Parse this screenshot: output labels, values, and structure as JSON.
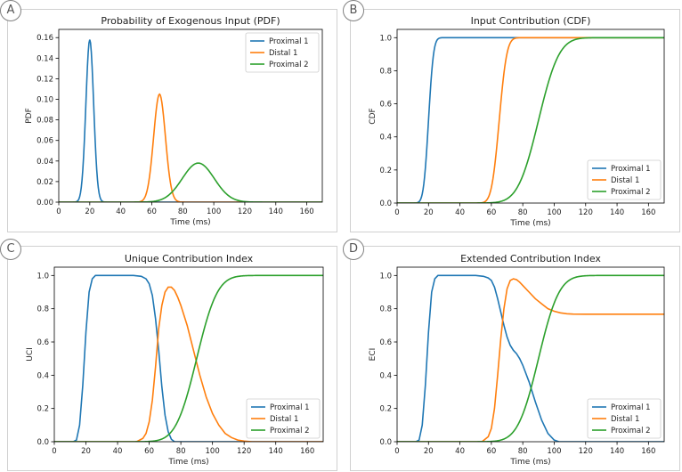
{
  "colors": {
    "blue": "#1f77b4",
    "orange": "#ff7f0e",
    "green": "#2ca02c"
  },
  "chart_data": [
    {
      "id": "pdf",
      "badge": "A",
      "type": "line",
      "title": "Probability of Exogenous Input (PDF)",
      "xlabel": "Time (ms)",
      "ylabel": "PDF",
      "xlim": [
        0,
        170
      ],
      "ylim": [
        0,
        0.168
      ],
      "xticks": [
        0,
        20,
        40,
        60,
        80,
        100,
        120,
        140,
        160
      ],
      "xtick_labels": [
        "0",
        "20",
        "40",
        "60",
        "80",
        "100",
        "120",
        "140",
        "160"
      ],
      "yticks": [
        0,
        0.02,
        0.04,
        0.06,
        0.08,
        0.1,
        0.12,
        0.14,
        0.16
      ],
      "ytick_labels": [
        "0.00",
        "0.02",
        "0.04",
        "0.06",
        "0.08",
        "0.10",
        "0.12",
        "0.14",
        "0.16"
      ],
      "legend_position": "top-right",
      "series": [
        {
          "name": "Proximal 1",
          "color": "#1f77b4",
          "kind": "gauss",
          "mu": 20,
          "sigma": 2.5,
          "peak": 0.158
        },
        {
          "name": "Distal 1",
          "color": "#ff7f0e",
          "kind": "gauss",
          "mu": 65,
          "sigma": 3.8,
          "peak": 0.105
        },
        {
          "name": "Proximal 2",
          "color": "#2ca02c",
          "kind": "gauss",
          "mu": 90,
          "sigma": 10.3,
          "peak": 0.038
        }
      ]
    },
    {
      "id": "cdf",
      "badge": "B",
      "type": "line",
      "title": "Input Contribution (CDF)",
      "xlabel": "Time (ms)",
      "ylabel": "CDF",
      "xlim": [
        0,
        170
      ],
      "ylim": [
        0,
        1.05
      ],
      "xticks": [
        0,
        20,
        40,
        60,
        80,
        100,
        120,
        140,
        160
      ],
      "xtick_labels": [
        "0",
        "20",
        "40",
        "60",
        "80",
        "100",
        "120",
        "140",
        "160"
      ],
      "yticks": [
        0,
        0.2,
        0.4,
        0.6,
        0.8,
        1.0
      ],
      "ytick_labels": [
        "0.0",
        "0.2",
        "0.4",
        "0.6",
        "0.8",
        "1.0"
      ],
      "legend_position": "bottom-right",
      "series": [
        {
          "name": "Proximal 1",
          "color": "#1f77b4",
          "kind": "cdf",
          "mu": 20,
          "sigma": 2.5
        },
        {
          "name": "Distal 1",
          "color": "#ff7f0e",
          "kind": "cdf",
          "mu": 65,
          "sigma": 3.8
        },
        {
          "name": "Proximal 2",
          "color": "#2ca02c",
          "kind": "cdf",
          "mu": 90,
          "sigma": 10.3
        }
      ]
    },
    {
      "id": "uci",
      "badge": "C",
      "type": "line",
      "title": "Unique Contribution Index",
      "xlabel": "Time (ms)",
      "ylabel": "UCI",
      "xlim": [
        0,
        170
      ],
      "ylim": [
        0,
        1.05
      ],
      "xticks": [
        0,
        20,
        40,
        60,
        80,
        100,
        120,
        140,
        160
      ],
      "xtick_labels": [
        "0",
        "20",
        "40",
        "60",
        "80",
        "100",
        "120",
        "140",
        "160"
      ],
      "yticks": [
        0,
        0.2,
        0.4,
        0.6,
        0.8,
        1.0
      ],
      "ytick_labels": [
        "0.0",
        "0.2",
        "0.4",
        "0.6",
        "0.8",
        "1.0"
      ],
      "legend_position": "bottom-right",
      "series": [
        {
          "name": "Proximal 1",
          "color": "#1f77b4",
          "kind": "points",
          "x": [
            0,
            12,
            14,
            16,
            18,
            20,
            22,
            24,
            26,
            30,
            40,
            50,
            55,
            58,
            60,
            62,
            64,
            66,
            68,
            70,
            72,
            74,
            76,
            80,
            170
          ],
          "y": [
            0,
            0,
            0.01,
            0.1,
            0.34,
            0.66,
            0.9,
            0.98,
            1.0,
            1.0,
            1.0,
            1.0,
            0.995,
            0.98,
            0.95,
            0.88,
            0.74,
            0.55,
            0.33,
            0.16,
            0.06,
            0.015,
            0,
            0,
            0
          ]
        },
        {
          "name": "Distal 1",
          "color": "#ff7f0e",
          "kind": "points",
          "x": [
            0,
            52,
            56,
            58,
            60,
            62,
            64,
            66,
            68,
            70,
            72,
            74,
            76,
            78,
            80,
            84,
            88,
            92,
            96,
            100,
            104,
            108,
            112,
            116,
            120,
            125,
            170
          ],
          "y": [
            0,
            0,
            0.02,
            0.05,
            0.12,
            0.25,
            0.45,
            0.68,
            0.82,
            0.9,
            0.93,
            0.93,
            0.91,
            0.87,
            0.82,
            0.7,
            0.55,
            0.4,
            0.27,
            0.17,
            0.1,
            0.05,
            0.025,
            0.01,
            0.004,
            0,
            0
          ]
        },
        {
          "name": "Proximal 2",
          "color": "#2ca02c",
          "kind": "cdf",
          "mu": 90,
          "sigma": 10.3
        }
      ]
    },
    {
      "id": "eci",
      "badge": "D",
      "type": "line",
      "title": "Extended Contribution Index",
      "xlabel": "Time (ms)",
      "ylabel": "ECI",
      "xlim": [
        0,
        170
      ],
      "ylim": [
        0,
        1.05
      ],
      "xticks": [
        0,
        20,
        40,
        60,
        80,
        100,
        120,
        140,
        160
      ],
      "xtick_labels": [
        "0",
        "20",
        "40",
        "60",
        "80",
        "100",
        "120",
        "140",
        "160"
      ],
      "yticks": [
        0,
        0.2,
        0.4,
        0.6,
        0.8,
        1.0
      ],
      "ytick_labels": [
        "0.0",
        "0.2",
        "0.4",
        "0.6",
        "0.8",
        "1.0"
      ],
      "legend_position": "bottom-right",
      "series": [
        {
          "name": "Proximal 1",
          "color": "#1f77b4",
          "kind": "points",
          "x": [
            0,
            12,
            14,
            16,
            18,
            20,
            22,
            24,
            26,
            30,
            40,
            50,
            55,
            58,
            60,
            62,
            64,
            66,
            68,
            70,
            72,
            74,
            76,
            78,
            80,
            84,
            88,
            92,
            96,
            100,
            103,
            170
          ],
          "y": [
            0,
            0,
            0.01,
            0.1,
            0.34,
            0.66,
            0.9,
            0.98,
            1.0,
            1.0,
            1.0,
            1.0,
            0.995,
            0.985,
            0.97,
            0.93,
            0.86,
            0.78,
            0.7,
            0.63,
            0.58,
            0.55,
            0.53,
            0.5,
            0.46,
            0.36,
            0.24,
            0.13,
            0.05,
            0.01,
            0,
            0
          ]
        },
        {
          "name": "Distal 1",
          "color": "#ff7f0e",
          "kind": "points",
          "x": [
            0,
            54,
            58,
            60,
            62,
            64,
            66,
            68,
            70,
            72,
            74,
            76,
            78,
            80,
            84,
            88,
            92,
            96,
            100,
            104,
            108,
            112,
            120,
            140,
            170
          ],
          "y": [
            0,
            0,
            0.03,
            0.08,
            0.2,
            0.4,
            0.62,
            0.8,
            0.92,
            0.97,
            0.98,
            0.975,
            0.96,
            0.94,
            0.9,
            0.86,
            0.83,
            0.8,
            0.785,
            0.775,
            0.77,
            0.768,
            0.767,
            0.767,
            0.767
          ]
        },
        {
          "name": "Proximal 2",
          "color": "#2ca02c",
          "kind": "cdf",
          "mu": 90,
          "sigma": 10.3
        }
      ]
    }
  ]
}
